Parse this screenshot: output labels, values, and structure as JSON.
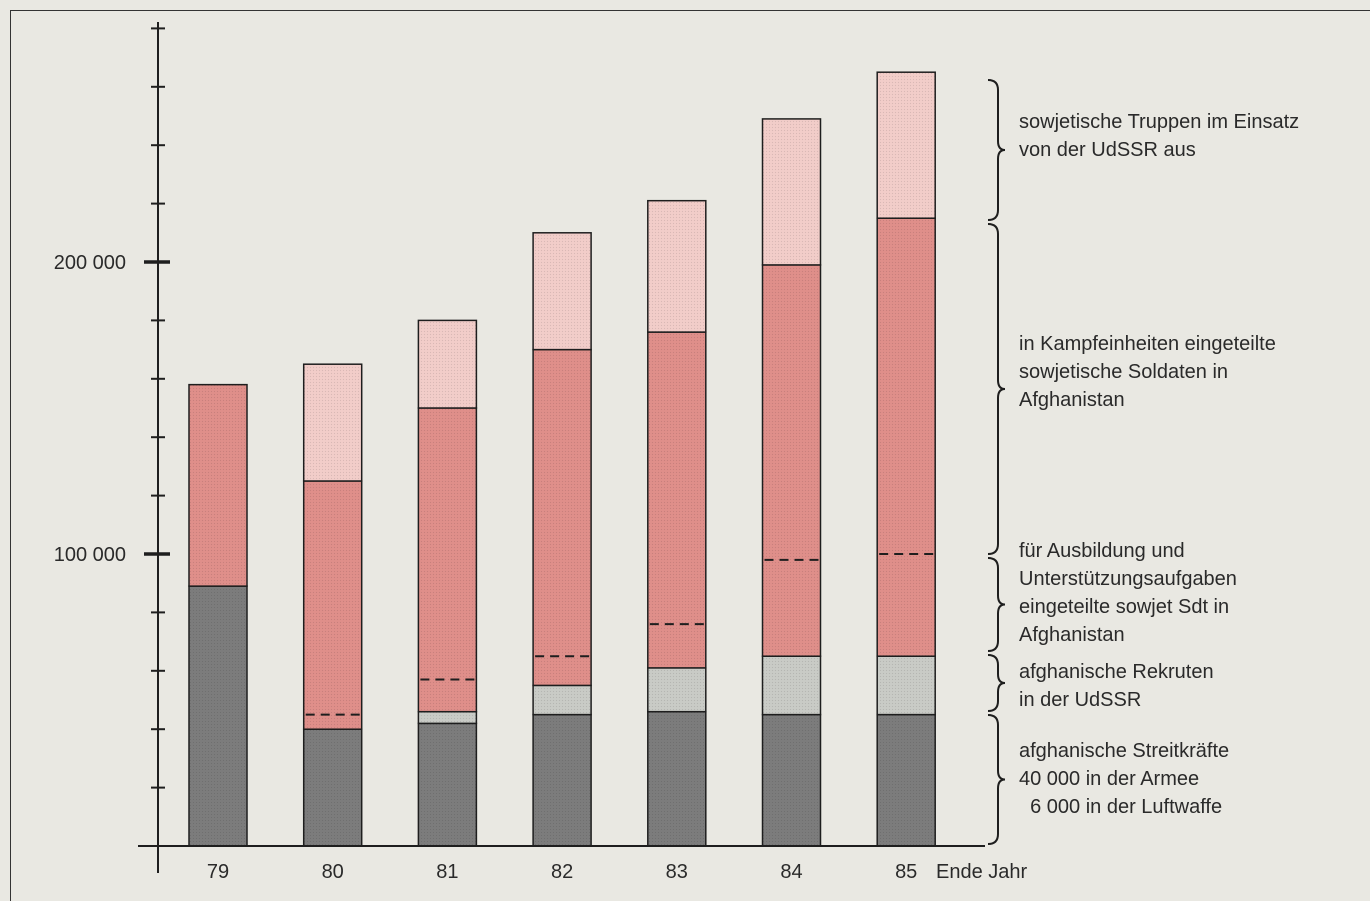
{
  "chart_data": {
    "type": "bar",
    "stacked": true,
    "categories": [
      "79",
      "80",
      "81",
      "82",
      "83",
      "84",
      "85"
    ],
    "xlabel": "Ende Jahr",
    "ylim": [
      0,
      285000
    ],
    "yticks_labeled": [
      {
        "value": 100000,
        "label": "100 000"
      },
      {
        "value": 200000,
        "label": "200 000"
      }
    ],
    "minor_tick_step": 20000,
    "series": [
      {
        "key": "streitkraefte",
        "values": [
          89000,
          40000,
          42000,
          45000,
          46000,
          45000,
          45000
        ],
        "color": "#7c7c7c"
      },
      {
        "key": "rekruten",
        "values": [
          0,
          0,
          4000,
          10000,
          15000,
          20000,
          20000
        ],
        "color": "#c9cbc6"
      },
      {
        "key": "kampf",
        "values": [
          69000,
          85000,
          104000,
          115000,
          115000,
          134000,
          150000
        ],
        "color": "#df8f8a"
      },
      {
        "key": "udssr",
        "values": [
          0,
          40000,
          30000,
          40000,
          45000,
          50000,
          50000
        ],
        "color": "#f2cdc9"
      }
    ],
    "dashed_markers": [
      null,
      45000,
      57000,
      65000,
      76000,
      98000,
      100000
    ],
    "legend": [
      {
        "key": "udssr",
        "lines": [
          "sowjetische Truppen im Einsatz",
          "von der UdSSR aus"
        ]
      },
      {
        "key": "kampf",
        "lines": [
          "in Kampfeinheiten eingeteilte",
          "sowjetische Soldaten in",
          "Afghanistan"
        ]
      },
      {
        "key": "ausbildung",
        "lines": [
          "für Ausbildung und",
          "Unterstützungsaufgaben",
          "eingeteilte sowjet Sdt in",
          "Afghanistan"
        ]
      },
      {
        "key": "rekruten",
        "lines": [
          "afghanische Rekruten",
          "in der UdSSR"
        ]
      },
      {
        "key": "streitkraefte",
        "lines": [
          "afghanische Streitkräfte",
          "40 000 in der Armee",
          "  6 000 in der Luftwaffe"
        ]
      }
    ]
  }
}
